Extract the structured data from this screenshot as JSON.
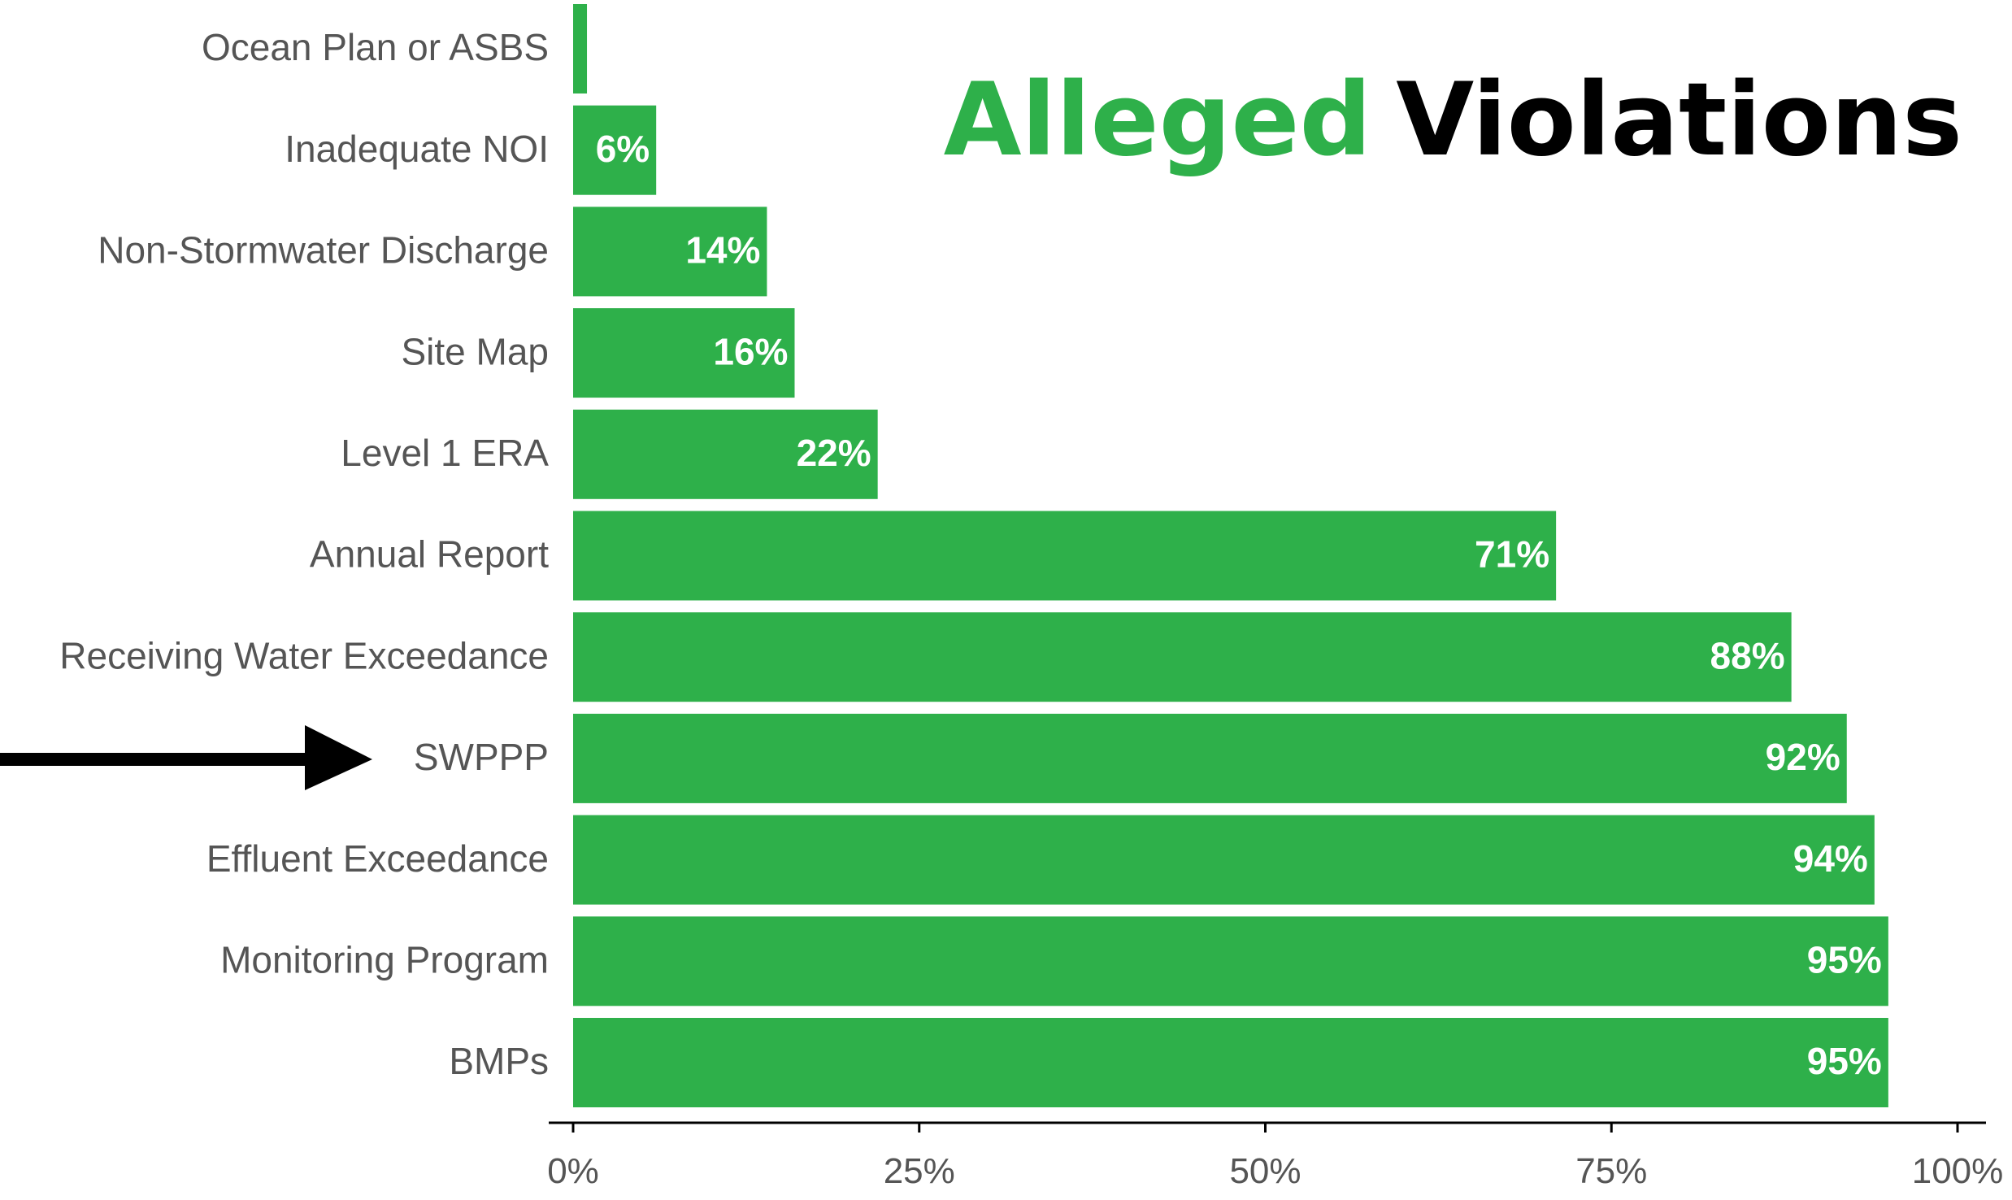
{
  "chart_data": {
    "type": "bar",
    "orientation": "horizontal",
    "title_parts": [
      {
        "text": "Alleged",
        "color": "#2eb04a"
      },
      {
        "text": "Violations",
        "color": "#000000"
      }
    ],
    "categories": [
      "Ocean Plan or ASBS",
      "Inadequate NOI",
      "Non-Stormwater Discharge",
      "Site Map",
      "Level 1 ERA",
      "Annual Report",
      "Receiving Water Exceedance",
      "SWPPP",
      "Effluent Exceedance",
      "Monitoring Program",
      "BMPs"
    ],
    "values": [
      1,
      6,
      14,
      16,
      22,
      71,
      88,
      92,
      94,
      95,
      95
    ],
    "value_labels": [
      null,
      "6%",
      "14%",
      "16%",
      "22%",
      "71%",
      "88%",
      "92%",
      "94%",
      "95%",
      "95%"
    ],
    "color": "#2eb04a",
    "xlim": [
      0,
      100
    ],
    "xticks": [
      {
        "value": 0,
        "label": "0%"
      },
      {
        "value": 25,
        "label": "25%"
      },
      {
        "value": 50,
        "label": "50%"
      },
      {
        "value": 75,
        "label": "75%"
      },
      {
        "value": 100,
        "label": "100%"
      }
    ],
    "grid": false
  }
}
